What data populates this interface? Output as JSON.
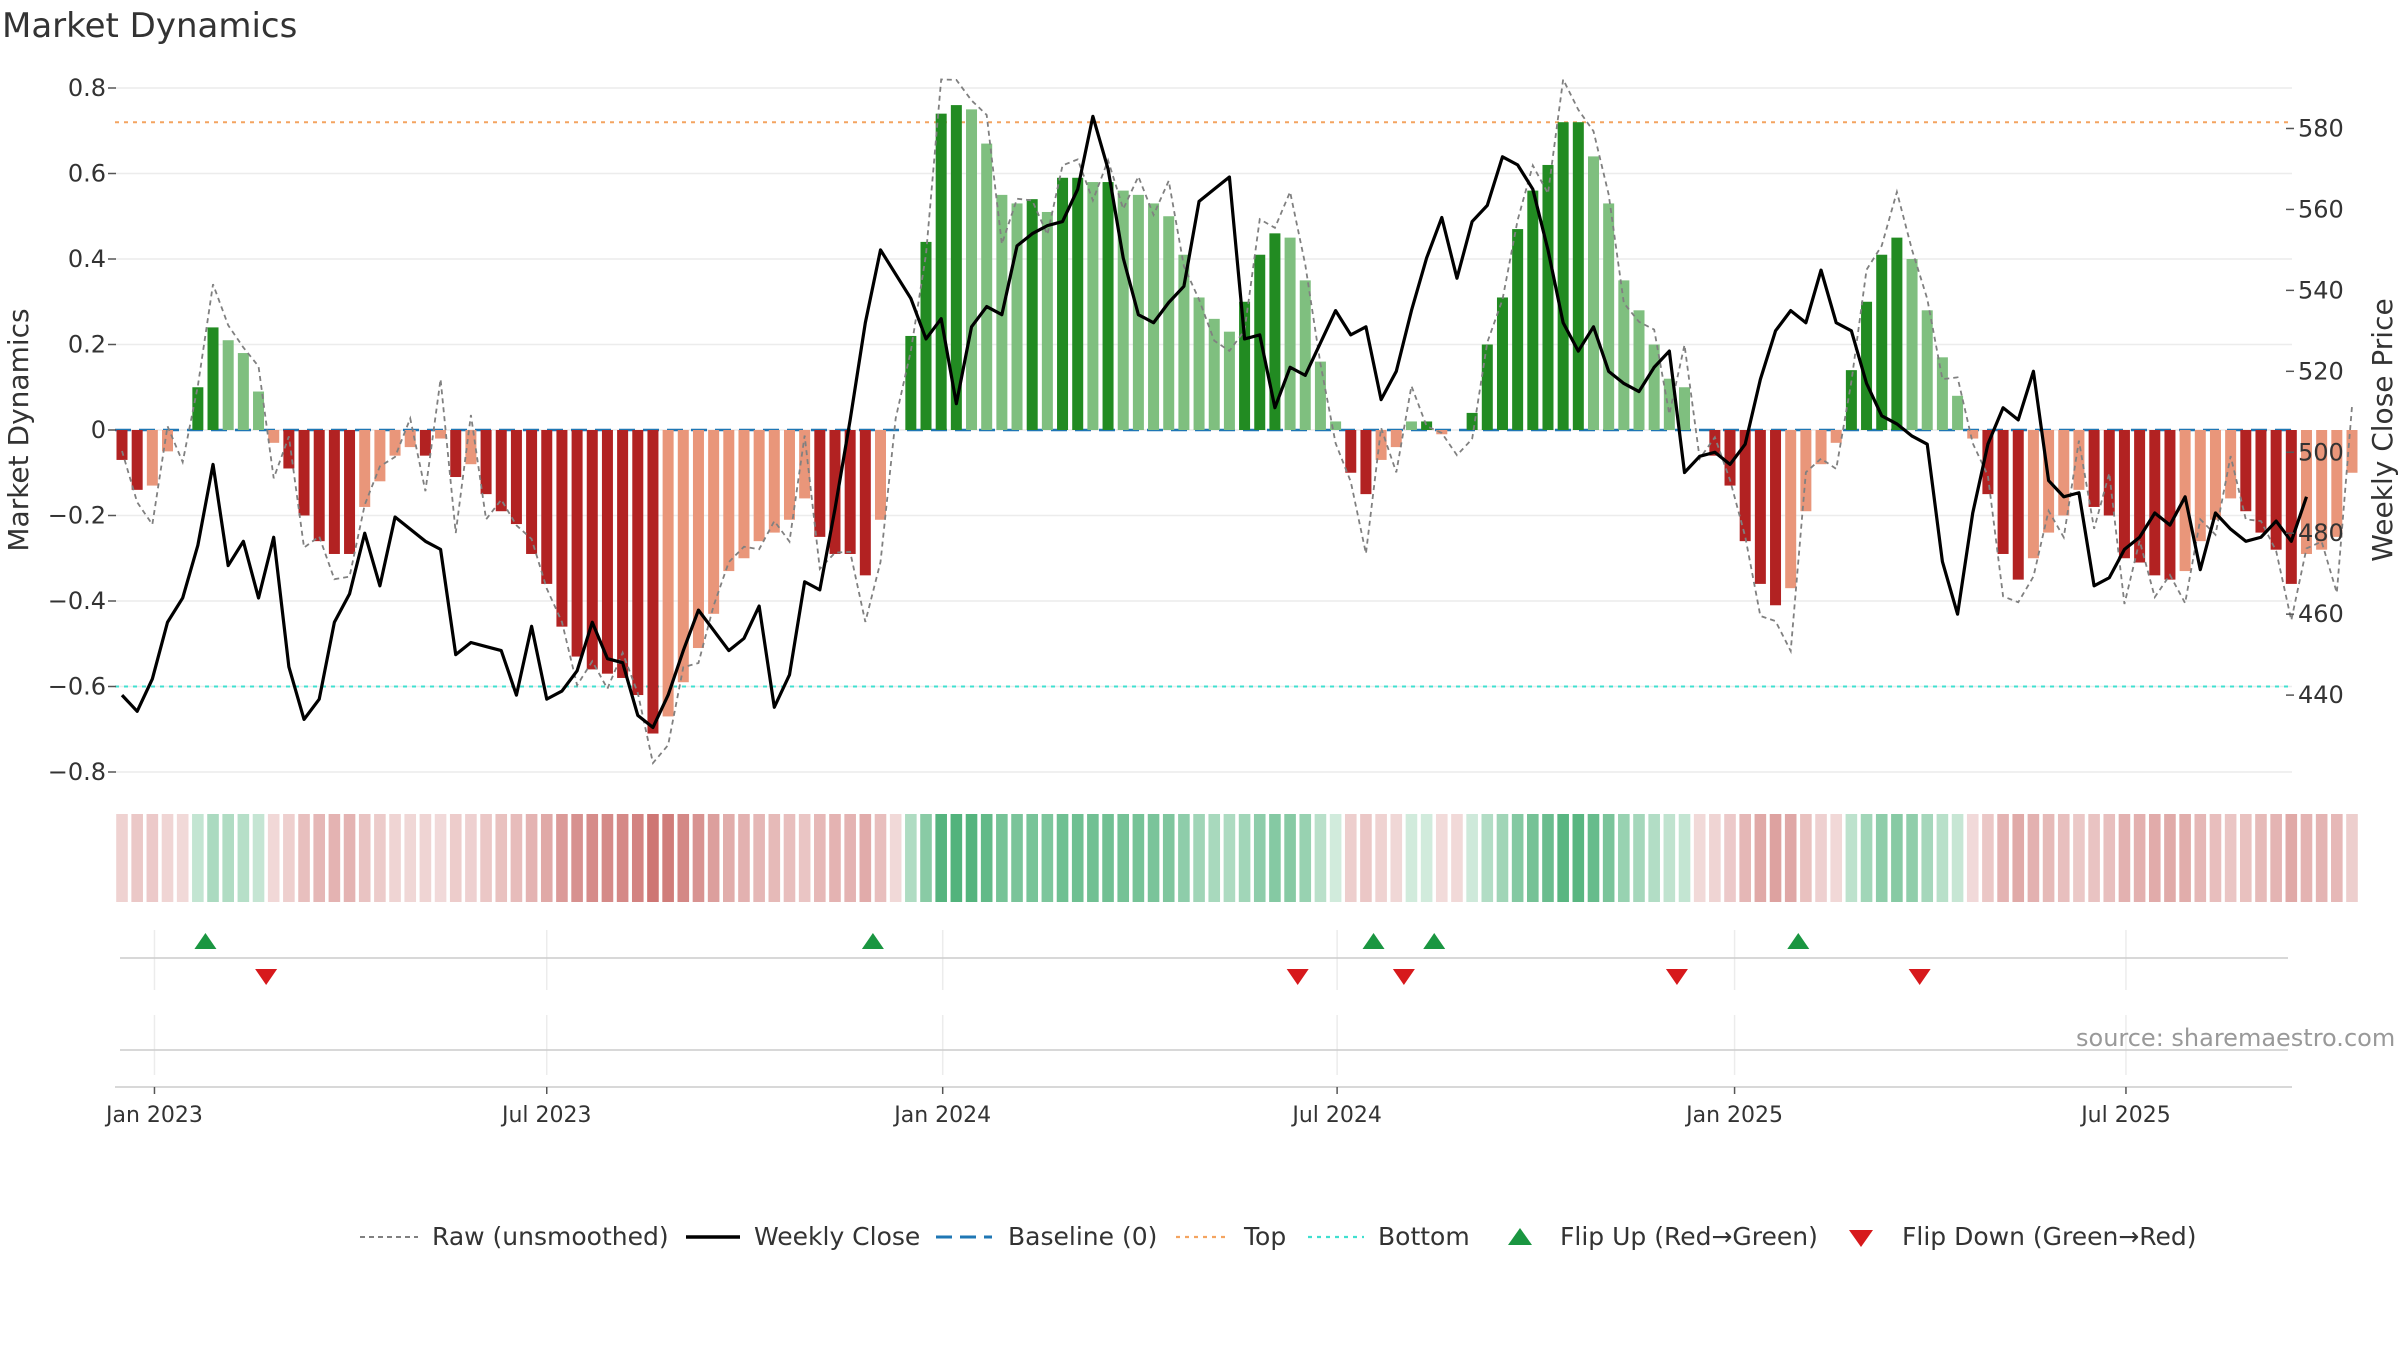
{
  "title": "Market Dynamics",
  "source": "source: sharemaestro.com",
  "colors": {
    "strong_green": "#228B22",
    "light_green": "#7FBF7F",
    "strong_red": "#B22222",
    "light_red": "#E9967A",
    "baseline": "#1f77b4",
    "top_line": "#F4A460",
    "bottom_line": "#40E0D0",
    "flip_up": "#1a9641",
    "flip_down": "#d7191c",
    "price": "#000000",
    "raw": "#808080"
  },
  "chart_data": {
    "type": "bar",
    "title": "Market Dynamics",
    "ylabel_left": "Market Dynamics",
    "ylabel_right": "Weekly Close Price",
    "ylim_left": [
      -0.8,
      0.8
    ],
    "ylim_right": [
      421,
      590
    ],
    "yticks_left": [
      "0.8",
      "0.6",
      "0.4",
      "0.2",
      "0",
      "−0.2",
      "−0.4",
      "−0.6",
      "−0.8"
    ],
    "yticks_left_values": [
      0.8,
      0.6,
      0.4,
      0.2,
      0,
      -0.2,
      -0.4,
      -0.6,
      -0.8
    ],
    "yticks_right": [
      "580",
      "560",
      "540",
      "520",
      "500",
      "480",
      "460",
      "440"
    ],
    "yticks_right_values": [
      580,
      560,
      540,
      520,
      500,
      480,
      460,
      440
    ],
    "xticks": [
      "Jan 2023",
      "Jul 2023",
      "Jan 2024",
      "Jul 2024",
      "Jan 2025",
      "Jul 2025"
    ],
    "xticks_week_index": [
      2.14,
      28.0,
      54.1,
      80.1,
      106.3,
      132.1
    ],
    "week_start": "2022-12-19",
    "top": 0.72,
    "bottom": -0.6,
    "baseline": 0,
    "grid": true,
    "legend_position": "bottom",
    "legend": [
      "Raw (unsmoothed)",
      "Weekly Close",
      "Baseline (0)",
      "Top",
      "Bottom",
      "Flip Up (Red→Green)",
      "Flip Down (Green→Red)"
    ],
    "dynamics": [
      -0.07,
      -0.14,
      -0.13,
      -0.05,
      0,
      0.1,
      0.24,
      0.21,
      0.18,
      0.09,
      -0.03,
      -0.09,
      -0.2,
      -0.26,
      -0.29,
      -0.29,
      -0.18,
      -0.12,
      -0.06,
      -0.04,
      -0.06,
      -0.02,
      -0.11,
      -0.08,
      -0.15,
      -0.19,
      -0.22,
      -0.29,
      -0.36,
      -0.46,
      -0.53,
      -0.56,
      -0.57,
      -0.58,
      -0.62,
      -0.71,
      -0.67,
      -0.59,
      -0.51,
      -0.43,
      -0.33,
      -0.3,
      -0.26,
      -0.24,
      -0.21,
      -0.16,
      -0.25,
      -0.29,
      -0.29,
      -0.34,
      -0.21,
      0,
      0.22,
      0.44,
      0.74,
      0.76,
      0.75,
      0.67,
      0.55,
      0.53,
      0.54,
      0.51,
      0.59,
      0.59,
      0.58,
      0.58,
      0.56,
      0.55,
      0.53,
      0.5,
      0.41,
      0.31,
      0.26,
      0.23,
      0.3,
      0.41,
      0.46,
      0.45,
      0.35,
      0.16,
      0.02,
      -0.1,
      -0.15,
      -0.07,
      -0.04,
      0.02,
      0.02,
      -0.01,
      0,
      0.04,
      0.2,
      0.31,
      0.47,
      0.56,
      0.62,
      0.72,
      0.72,
      0.64,
      0.53,
      0.35,
      0.28,
      0.2,
      0.12,
      0.1,
      0,
      -0.06,
      -0.13,
      -0.26,
      -0.36,
      -0.41,
      -0.37,
      -0.19,
      -0.08,
      -0.03,
      0.14,
      0.3,
      0.41,
      0.45,
      0.4,
      0.28,
      0.17,
      0.08,
      -0.02,
      -0.15,
      -0.29,
      -0.35,
      -0.3,
      -0.24,
      -0.2,
      -0.14,
      -0.18,
      -0.2,
      -0.3,
      -0.31,
      -0.34,
      -0.35,
      -0.33,
      -0.26,
      -0.21,
      -0.16,
      -0.19,
      -0.24,
      -0.28,
      -0.36,
      -0.29,
      -0.28,
      -0.25,
      -0.1
    ],
    "weekly_close": [
      440,
      436,
      444,
      458,
      464,
      477,
      497,
      472,
      478,
      464,
      479,
      447,
      434,
      439,
      458,
      465,
      480,
      467,
      484,
      481,
      478,
      476,
      450,
      453,
      452,
      451,
      440,
      457,
      439,
      441,
      446,
      458,
      449,
      448,
      435,
      432,
      440,
      451,
      461,
      456,
      451,
      454,
      462,
      437,
      445,
      468,
      466,
      486,
      508,
      532,
      550,
      544,
      538,
      528,
      533,
      512,
      531,
      536,
      534,
      551,
      554,
      556,
      557,
      565,
      583,
      570,
      548,
      534,
      532,
      537,
      541,
      562,
      565,
      568,
      528,
      529,
      511,
      521,
      519,
      527,
      535,
      529,
      531,
      513,
      520,
      535,
      548,
      558,
      543,
      557,
      561,
      573,
      571,
      565,
      550,
      532,
      525,
      531,
      520,
      517,
      515,
      521,
      525,
      495,
      499,
      500,
      497,
      502,
      518,
      530,
      535,
      532,
      545,
      532,
      530,
      517,
      509,
      507,
      504,
      502,
      473,
      460,
      485,
      502,
      511,
      508,
      520,
      493,
      489,
      490,
      467,
      469,
      476,
      479,
      485,
      482,
      489,
      471,
      485,
      481,
      478,
      479,
      483,
      478,
      489
    ]
  },
  "flips": {
    "up": [
      5.5,
      49.5,
      82.5,
      86.5,
      110.5
    ],
    "down": [
      9.5,
      77.5,
      84.5,
      102.5,
      118.5
    ]
  },
  "legend": {
    "raw": "Raw (unsmoothed)",
    "close": "Weekly Close",
    "baseline": "Baseline (0)",
    "top": "Top",
    "bottom": "Bottom",
    "flip_up": "Flip Up (Red→Green)",
    "flip_down": "Flip Down (Green→Red)"
  }
}
